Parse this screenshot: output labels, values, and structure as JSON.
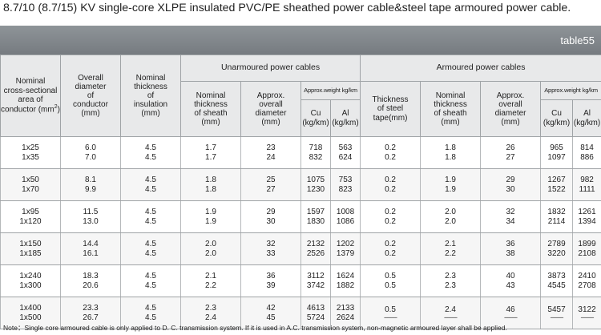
{
  "title": "8.7/10 (8.7/15) KV single-core XLPE  insulated PVC/PE sheathed power cable&steel tape armoured power cable.",
  "table_tag": "table55",
  "headers": {
    "nominal_area_l1": "Nominal",
    "nominal_area_l2": "cross-sectional",
    "nominal_area_l3": "area of",
    "nominal_area_l4": "conductor (mm",
    "nominal_area_sup": "2",
    "nominal_area_l4b": ")",
    "overall_diameter": [
      "Overall",
      "diameter",
      "of",
      "conductor",
      "(mm)"
    ],
    "insulation": [
      "Nominal",
      "thickness",
      "of",
      "insulation",
      "(mm)"
    ],
    "unarmoured_group": "Unarmoured power cables",
    "armoured_group": "Armoured power cables",
    "un_sheath": [
      "Nominal",
      "thickness",
      "of  sheath",
      "(mm)"
    ],
    "un_diameter": [
      "Approx.",
      "overall",
      "diameter",
      "(mm)"
    ],
    "un_weight": "Approx.weight kg/km",
    "steel": [
      "Thickness",
      "of steel",
      "tape(mm)"
    ],
    "ar_sheath": [
      "Nominal",
      "thickness",
      "of  sheath",
      "(mm)"
    ],
    "ar_diameter": [
      "Approx.",
      "overall",
      "diameter",
      "(mm)"
    ],
    "ar_weight": "Approx.weight kg/km",
    "cu": [
      "Cu",
      "(kg/km)"
    ],
    "al": [
      "Al",
      "(kg/km)"
    ]
  },
  "rows": [
    {
      "area": [
        "1x25",
        "1x35"
      ],
      "dia": [
        "6.0",
        "7.0"
      ],
      "ins": [
        "4.5",
        "4.5"
      ],
      "un_sh": [
        "1.7",
        "1.7"
      ],
      "un_od": [
        "23",
        "24"
      ],
      "un_cu": [
        "718",
        "832"
      ],
      "un_al": [
        "563",
        "624"
      ],
      "steel": [
        "0.2",
        "0.2"
      ],
      "ar_sh": [
        "1.8",
        "1.8"
      ],
      "ar_od": [
        "26",
        "27"
      ],
      "ar_cu": [
        "965",
        "1097"
      ],
      "ar_al": [
        "814",
        "886"
      ]
    },
    {
      "area": [
        "1x50",
        "1x70"
      ],
      "dia": [
        "8.1",
        "9.9"
      ],
      "ins": [
        "4.5",
        "4.5"
      ],
      "un_sh": [
        "1.8",
        "1.8"
      ],
      "un_od": [
        "25",
        "27"
      ],
      "un_cu": [
        "1075",
        "1230"
      ],
      "un_al": [
        "753",
        "823"
      ],
      "steel": [
        "0.2",
        "0.2"
      ],
      "ar_sh": [
        "1.9",
        "1.9"
      ],
      "ar_od": [
        "29",
        "30"
      ],
      "ar_cu": [
        "1267",
        "1522"
      ],
      "ar_al": [
        "982",
        "1111"
      ]
    },
    {
      "area": [
        "1x95",
        "1x120"
      ],
      "dia": [
        "11.5",
        "13.0"
      ],
      "ins": [
        "4.5",
        "4.5"
      ],
      "un_sh": [
        "1.9",
        "1.9"
      ],
      "un_od": [
        "29",
        "30"
      ],
      "un_cu": [
        "1597",
        "1830"
      ],
      "un_al": [
        "1008",
        "1086"
      ],
      "steel": [
        "0.2",
        "0.2"
      ],
      "ar_sh": [
        "2.0",
        "2.0"
      ],
      "ar_od": [
        "32",
        "34"
      ],
      "ar_cu": [
        "1832",
        "2114"
      ],
      "ar_al": [
        "1261",
        "1394"
      ]
    },
    {
      "area": [
        "1x150",
        "1x185"
      ],
      "dia": [
        "14.4",
        "16.1"
      ],
      "ins": [
        "4.5",
        "4.5"
      ],
      "un_sh": [
        "2.0",
        "2.0"
      ],
      "un_od": [
        "32",
        "33"
      ],
      "un_cu": [
        "2132",
        "2526"
      ],
      "un_al": [
        "1202",
        "1379"
      ],
      "steel": [
        "0.2",
        "0.2"
      ],
      "ar_sh": [
        "2.1",
        "2.2"
      ],
      "ar_od": [
        "36",
        "38"
      ],
      "ar_cu": [
        "2789",
        "3220"
      ],
      "ar_al": [
        "1899",
        "2108"
      ]
    },
    {
      "area": [
        "1x240",
        "1x300"
      ],
      "dia": [
        "18.3",
        "20.6"
      ],
      "ins": [
        "4.5",
        "4.5"
      ],
      "un_sh": [
        "2.1",
        "2.2"
      ],
      "un_od": [
        "36",
        "39"
      ],
      "un_cu": [
        "3112",
        "3742"
      ],
      "un_al": [
        "1624",
        "1882"
      ],
      "steel": [
        "0.5",
        "0.5"
      ],
      "ar_sh": [
        "2.3",
        "2.3"
      ],
      "ar_od": [
        "40",
        "43"
      ],
      "ar_cu": [
        "3873",
        "4545"
      ],
      "ar_al": [
        "2410",
        "2708"
      ]
    },
    {
      "area": [
        "1x400",
        "1x500"
      ],
      "dia": [
        "23.3",
        "26.7"
      ],
      "ins": [
        "4.5",
        "4.5"
      ],
      "un_sh": [
        "2.3",
        "2.4"
      ],
      "un_od": [
        "42",
        "45"
      ],
      "un_cu": [
        "4613",
        "5724"
      ],
      "un_al": [
        "2133",
        "2624"
      ],
      "steel": [
        "0.5",
        "--------"
      ],
      "ar_sh": [
        "2.4",
        "--------"
      ],
      "ar_od": [
        "46",
        "--------"
      ],
      "ar_cu": [
        "5457",
        "--------"
      ],
      "ar_al": [
        "3122",
        "--------"
      ]
    }
  ],
  "note": "Note：Single core armoured cable is only applied to D. C. transmission system. If it is used in A.C. transmission system, non-magnetic armoured layer shall be applied."
}
